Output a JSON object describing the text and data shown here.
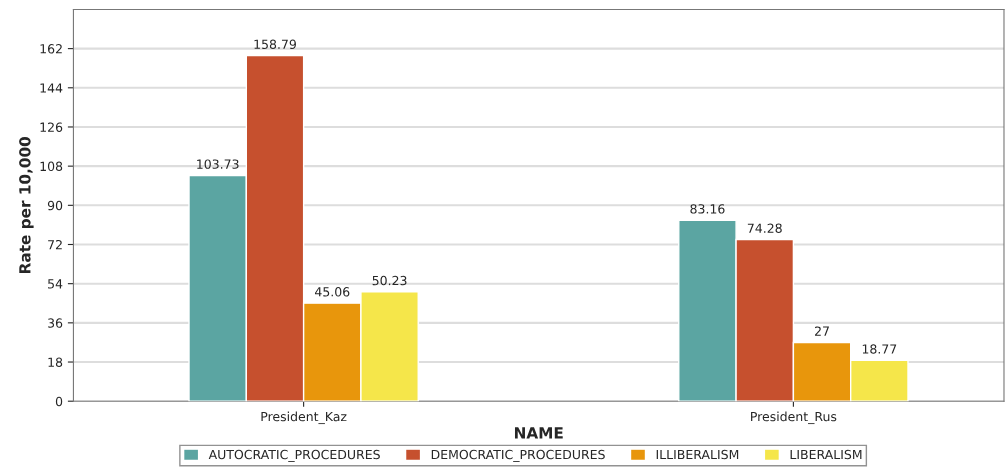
{
  "chart_data": {
    "type": "bar",
    "xlabel": "NAME",
    "ylabel": "Rate per 10,000",
    "categories": [
      "President_Kaz",
      "President_Rus"
    ],
    "series": [
      {
        "name": "AUTOCRATIC_PROCEDURES",
        "color": "#5ba5a2",
        "values": [
          103.73,
          83.16
        ]
      },
      {
        "name": "DEMOCRATIC_PROCEDURES",
        "color": "#c6502e",
        "values": [
          158.79,
          74.28
        ]
      },
      {
        "name": "ILLIBERALISM",
        "color": "#e8960c",
        "values": [
          45.06,
          27
        ]
      },
      {
        "name": "LIBERALISM",
        "color": "#f5e64a",
        "values": [
          50.23,
          18.77
        ]
      }
    ],
    "ylim": [
      0,
      180
    ],
    "yticks": [
      0,
      18,
      36,
      54,
      72,
      90,
      108,
      126,
      144,
      162
    ],
    "grid": "y",
    "legend": "bottom",
    "data_labels": true
  }
}
